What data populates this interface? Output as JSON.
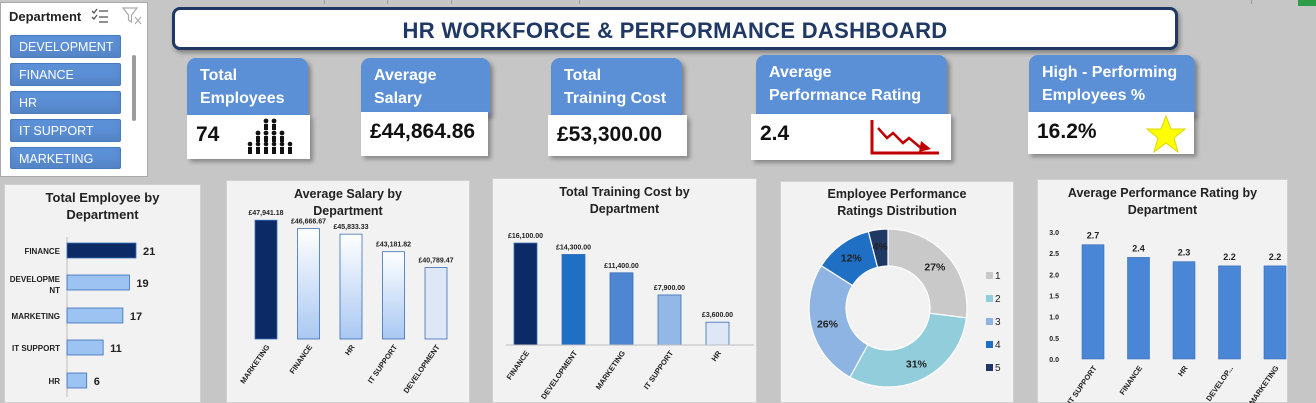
{
  "slicer": {
    "header": "Department",
    "items": [
      "DEVELOPMENT",
      "FINANCE",
      "HR",
      "IT SUPPORT",
      "MARKETING"
    ]
  },
  "title": "HR WORKFORCE & PERFORMANCE DASHBOARD",
  "kpis": {
    "total_employees": {
      "label_line1": "Total",
      "label_line2": "Employees",
      "value": "74",
      "icon": "people-group-icon"
    },
    "average_salary": {
      "label_line1": "Average",
      "label_line2": "Salary",
      "value": "£44,864.86"
    },
    "training_cost": {
      "label_line1": "Total",
      "label_line2": "Training Cost",
      "value": "£53,300.00"
    },
    "performance_rating": {
      "label_line1": "Average",
      "label_line2": "Performance Rating",
      "value": "2.4",
      "icon": "trend-down-icon"
    },
    "high_performing": {
      "label_line1": "High - Performing",
      "label_line2": "Employees %",
      "value": "16.2%",
      "icon": "star-icon"
    }
  },
  "colors": {
    "accent": "#5b8fd6",
    "title": "#1f3864",
    "dark_navy": "#0b2a66",
    "trend_red": "#c00000",
    "star": "#ffff00"
  },
  "chart_data": [
    {
      "type": "bar",
      "orientation": "horizontal",
      "title_line1": "Total Employee by",
      "title_line2": "Department",
      "categories": [
        "FINANCE",
        "DEVELOPME NT",
        "MARKETING",
        "IT SUPPORT",
        "HR"
      ],
      "category_lines": [
        [
          "FINANCE"
        ],
        [
          "DEVELOPME",
          "NT"
        ],
        [
          "MARKETING"
        ],
        [
          "IT SUPPORT"
        ],
        [
          "HR"
        ]
      ],
      "values": [
        21,
        19,
        17,
        11,
        6
      ],
      "labels": [
        "21",
        "19",
        "17",
        "11",
        "6"
      ],
      "xlim": [
        0,
        24
      ]
    },
    {
      "type": "bar",
      "title_line1": "Average Salary by",
      "title_line2": "Department",
      "categories": [
        "MARKETING",
        "FINANCE",
        "HR",
        "IT SUPPORT",
        "DEVELOPMENT"
      ],
      "values": [
        47941.18,
        46666.67,
        45833.33,
        43181.82,
        40789.47
      ],
      "labels": [
        "£47,941.18",
        "£46,666.67",
        "£45,833.33",
        "£43,181.82",
        "£40,789.47"
      ],
      "ylim": [
        30000,
        50000
      ]
    },
    {
      "type": "bar",
      "title_line1": "Total Training Cost by",
      "title_line2": "Department",
      "categories": [
        "FINANCE",
        "DEVELOPMENT",
        "MARKETING",
        "IT SUPPORT",
        "HR"
      ],
      "values": [
        16100,
        14300,
        11400,
        7900,
        3600
      ],
      "labels": [
        "£16,100.00",
        "£14,300.00",
        "£11,400.00",
        "£7,900.00",
        "£3,600.00"
      ],
      "ylim": [
        0,
        18000
      ]
    },
    {
      "type": "pie",
      "donut": true,
      "title_line1": "Employee Performance",
      "title_line2": "Ratings Distribution",
      "categories": [
        "1",
        "2",
        "3",
        "4",
        "5"
      ],
      "values": [
        27,
        31,
        26,
        12,
        4
      ],
      "labels": [
        "27%",
        "31%",
        "26%",
        "12%",
        "4%"
      ],
      "colors": [
        "#c9c9c9",
        "#92cddc",
        "#8eb4e3",
        "#1f6fc5",
        "#1f3864"
      ],
      "legend": "right"
    },
    {
      "type": "bar",
      "title_line1": "Average Performance Rating by",
      "title_line2": "Department",
      "categories": [
        "IT SUPPORT",
        "FINANCE",
        "HR",
        "DEVELOP...",
        "MARKETING"
      ],
      "values": [
        2.7,
        2.4,
        2.3,
        2.2,
        2.2
      ],
      "labels": [
        "2.7",
        "2.4",
        "2.3",
        "2.2",
        "2.2"
      ],
      "yticks": [
        "0.0",
        "0.5",
        "1.0",
        "1.5",
        "2.0",
        "2.5",
        "3.0"
      ],
      "ylim": [
        0,
        3
      ]
    }
  ]
}
